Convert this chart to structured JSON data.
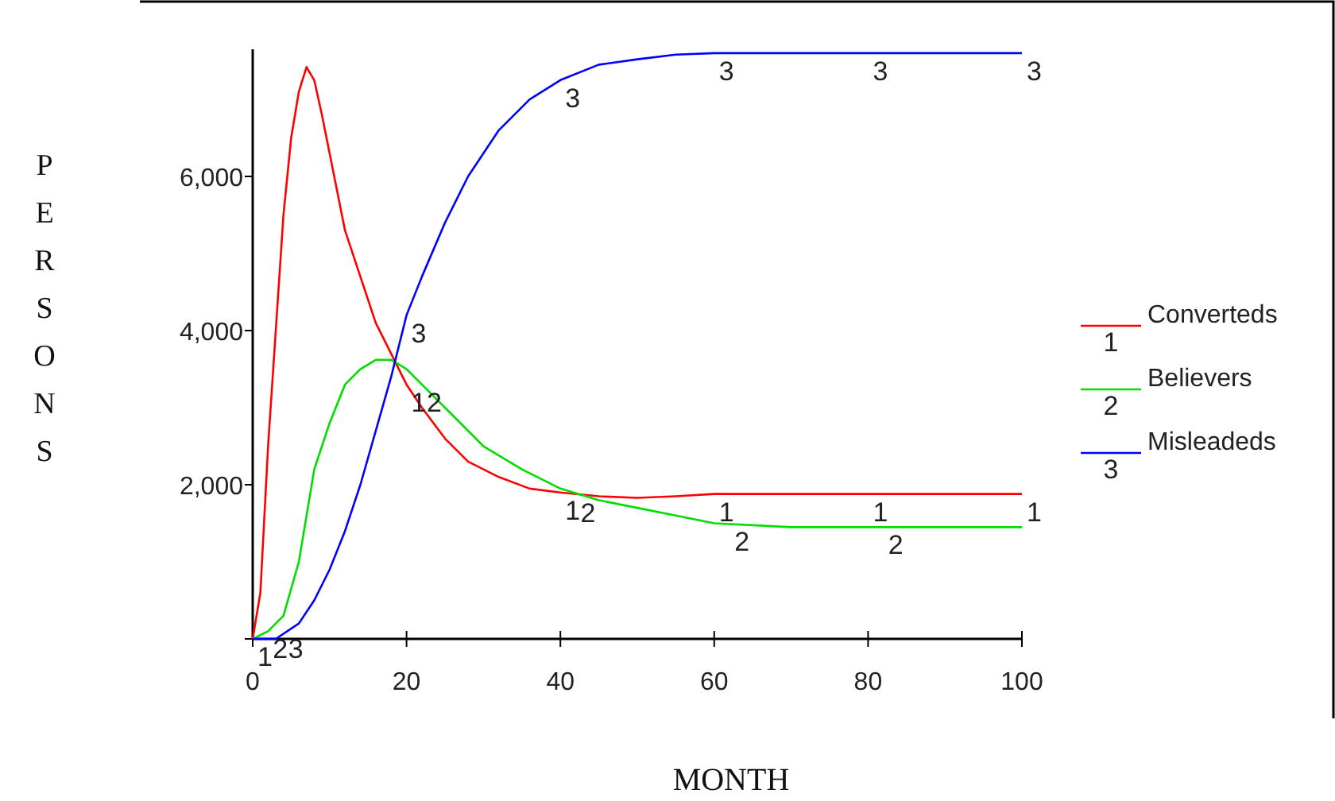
{
  "chart_data": {
    "type": "line",
    "xlabel": "MONTH",
    "ylabel": "PERSONS",
    "xlim": [
      0,
      100
    ],
    "ylim": [
      0,
      7650
    ],
    "xticks": [
      0,
      20,
      40,
      60,
      80,
      100
    ],
    "yticks": [
      {
        "value": 0,
        "label": null
      },
      {
        "value": 2000,
        "label": "2,000"
      },
      {
        "value": 4000,
        "label": "4,000"
      },
      {
        "value": 6000,
        "label": "6,000"
      }
    ],
    "grid": false,
    "legend": "right",
    "marker": "none",
    "line_style": "solid",
    "series": [
      {
        "name": "Converteds",
        "color": "#ff0000",
        "x": [
          0,
          1,
          2,
          3,
          4,
          5,
          6,
          7,
          8,
          9,
          10,
          12,
          14,
          16,
          18,
          20,
          22,
          25,
          28,
          32,
          36,
          40,
          45,
          50,
          55,
          60,
          80,
          100
        ],
        "values": [
          0,
          600,
          2500,
          4000,
          5500,
          6500,
          7100,
          7420,
          7250,
          6800,
          6300,
          5300,
          4700,
          4100,
          3700,
          3300,
          3000,
          2600,
          2300,
          2100,
          1950,
          1900,
          1850,
          1830,
          1850,
          1880,
          1880,
          1880
        ]
      },
      {
        "name": "Believers",
        "color": "#00dd00",
        "x": [
          0,
          2,
          4,
          6,
          8,
          10,
          12,
          14,
          16,
          18,
          20,
          22,
          25,
          30,
          35,
          40,
          45,
          50,
          55,
          60,
          70,
          100
        ],
        "values": [
          0,
          100,
          300,
          1000,
          2200,
          2800,
          3300,
          3500,
          3620,
          3620,
          3500,
          3300,
          3000,
          2500,
          2200,
          1950,
          1800,
          1700,
          1600,
          1500,
          1450,
          1450
        ]
      },
      {
        "name": "Misleadeds",
        "color": "#0000ff",
        "x": [
          0,
          3,
          6,
          8,
          10,
          12,
          14,
          16,
          18,
          20,
          22,
          25,
          28,
          32,
          36,
          40,
          45,
          50,
          55,
          60,
          100
        ],
        "values": [
          0,
          0,
          200,
          500,
          900,
          1400,
          2000,
          2700,
          3400,
          4200,
          4700,
          5400,
          6000,
          6600,
          7000,
          7250,
          7450,
          7520,
          7580,
          7600,
          7600
        ]
      }
    ],
    "annotations": [
      {
        "text": "1",
        "x": 0,
        "y": 0
      },
      {
        "text": "1",
        "x": 20,
        "y": 3300
      },
      {
        "text": "1",
        "x": 40,
        "y": 1900
      },
      {
        "text": "1",
        "x": 60,
        "y": 1880
      },
      {
        "text": "1",
        "x": 80,
        "y": 1880
      },
      {
        "text": "1",
        "x": 100,
        "y": 1880
      },
      {
        "text": "2",
        "x": 2,
        "y": 100
      },
      {
        "text": "2",
        "x": 22,
        "y": 3300
      },
      {
        "text": "2",
        "x": 42,
        "y": 1870
      },
      {
        "text": "2",
        "x": 62,
        "y": 1490
      },
      {
        "text": "2",
        "x": 82,
        "y": 1450
      },
      {
        "text": "3",
        "x": 4,
        "y": 100
      },
      {
        "text": "3",
        "x": 20,
        "y": 4200
      },
      {
        "text": "3",
        "x": 40,
        "y": 7250
      },
      {
        "text": "3",
        "x": 60,
        "y": 7600
      },
      {
        "text": "3",
        "x": 80,
        "y": 7600
      },
      {
        "text": "3",
        "x": 100,
        "y": 7600
      }
    ]
  }
}
